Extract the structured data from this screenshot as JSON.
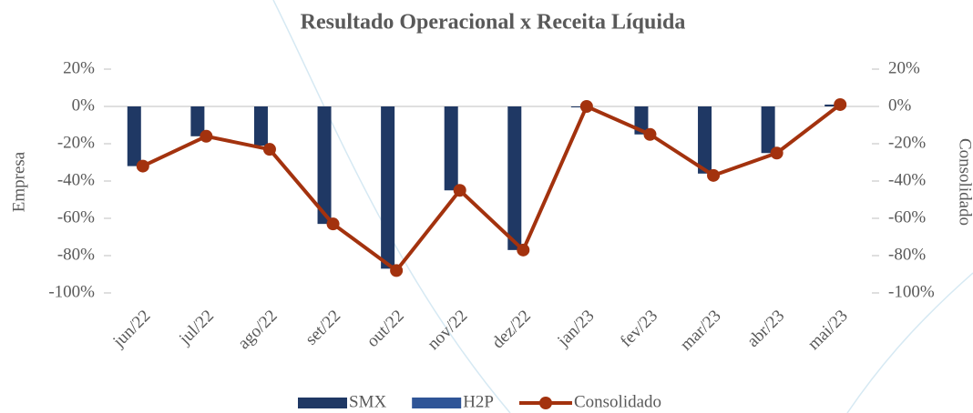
{
  "chart_data": {
    "type": "bar_line",
    "title": "Resultado Operacional x Receita Líquida",
    "ylabel": "Empresa",
    "y2label": "Consolidado",
    "categories": [
      "jun/22",
      "jul/22",
      "ago/22",
      "set/22",
      "out/22",
      "nov/22",
      "dez/22",
      "jan/23",
      "fev/23",
      "mar/23",
      "abr/23",
      "mai/23"
    ],
    "series": [
      {
        "name": "SMX",
        "type": "bar",
        "color": "#1f3864",
        "values": [
          -32,
          -16,
          -21,
          -63,
          -87,
          -45,
          -77,
          -0.5,
          -15,
          -36,
          -25,
          1
        ]
      },
      {
        "name": "H2P",
        "type": "bar",
        "color": "#2f5597",
        "values": [
          0,
          0,
          0,
          0,
          0,
          0,
          0,
          0,
          0,
          0,
          0,
          0
        ]
      },
      {
        "name": "Consolidado",
        "type": "line",
        "axis": "y2",
        "color": "#a3320e",
        "values": [
          -32,
          -16,
          -23,
          -63,
          -88,
          -45,
          -77,
          0,
          -15,
          -37,
          -25,
          1
        ]
      }
    ],
    "ylim": [
      -100,
      20
    ],
    "yticks": [
      {
        "value": 20,
        "label": "20%"
      },
      {
        "value": 0,
        "label": "0%"
      },
      {
        "value": -20,
        "label": "-20%"
      },
      {
        "value": -40,
        "label": "-40%"
      },
      {
        "value": -60,
        "label": "-60%"
      },
      {
        "value": -80,
        "label": "-80%"
      },
      {
        "value": -100,
        "label": "-100%"
      }
    ],
    "y2lim": [
      -100,
      20
    ],
    "y2ticks": [
      {
        "value": 20,
        "label": "20%"
      },
      {
        "value": 0,
        "label": "0%"
      },
      {
        "value": -20,
        "label": "-20%"
      },
      {
        "value": -40,
        "label": "-40%"
      },
      {
        "value": -60,
        "label": "-60%"
      },
      {
        "value": -80,
        "label": "-80%"
      },
      {
        "value": -100,
        "label": "-100%"
      }
    ],
    "legend": "bottom"
  }
}
